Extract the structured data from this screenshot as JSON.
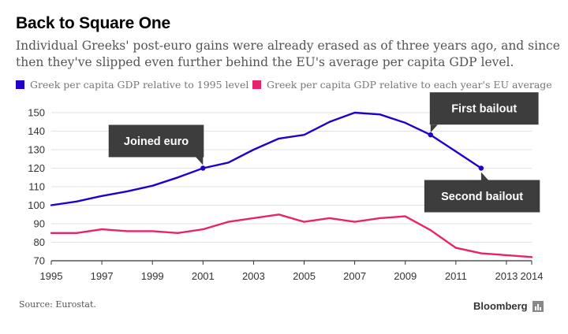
{
  "chart_data": {
    "type": "line",
    "title": "Back to Square One",
    "subtitle": "Individual Greeks' post-euro gains were already erased as of three years ago, and since then they've slipped even further behind the EU's average per capita GDP level.",
    "x": [
      1995,
      1996,
      1997,
      1998,
      1999,
      2000,
      2001,
      2002,
      2003,
      2004,
      2005,
      2006,
      2007,
      2008,
      2009,
      2010,
      2011,
      2012,
      2013,
      2014
    ],
    "series": [
      {
        "name": "Greek per capita GDP relative to 1995 level",
        "color": "#2200cc",
        "x": [
          1995,
          1996,
          1997,
          1998,
          1999,
          2000,
          2001,
          2002,
          2003,
          2004,
          2005,
          2006,
          2007,
          2008,
          2009,
          2010,
          2011,
          2012
        ],
        "values": [
          100,
          102,
          105,
          107.5,
          110.5,
          115,
          120,
          123,
          130,
          136,
          138,
          145,
          150,
          149,
          144.5,
          138,
          129,
          120
        ]
      },
      {
        "name": "Greek per capita GDP relative to each year's EU average",
        "color": "#e8236a",
        "x": [
          1995,
          1996,
          1997,
          1998,
          1999,
          2000,
          2001,
          2002,
          2003,
          2004,
          2005,
          2006,
          2007,
          2008,
          2009,
          2010,
          2011,
          2012,
          2013,
          2014
        ],
        "values": [
          85,
          85,
          87,
          86,
          86,
          85,
          87,
          91,
          93,
          95,
          91,
          93,
          91,
          93,
          94,
          86.5,
          77,
          74,
          73,
          72
        ]
      }
    ],
    "xlabel": "",
    "ylabel": "",
    "ylim": [
      70,
      150
    ],
    "yticks": [
      "70",
      "80",
      "90",
      "100",
      "110",
      "120",
      "130",
      "140",
      "150"
    ],
    "xticks": [
      "1995",
      "1997",
      "1999",
      "2001",
      "2003",
      "2005",
      "2007",
      "2009",
      "2011",
      "2013",
      "2014"
    ],
    "grid": true,
    "legend_position": "top",
    "annotations": [
      {
        "label": "Joined euro",
        "x": 2001,
        "y": 120,
        "placement": "above"
      },
      {
        "label": "First bailout",
        "x": 2010,
        "y": 138,
        "placement": "above"
      },
      {
        "label": "Second bailout",
        "x": 2012,
        "y": 120,
        "placement": "below"
      }
    ]
  },
  "footer": {
    "source": "Source: Eurostat.",
    "brand": "Bloomberg"
  }
}
